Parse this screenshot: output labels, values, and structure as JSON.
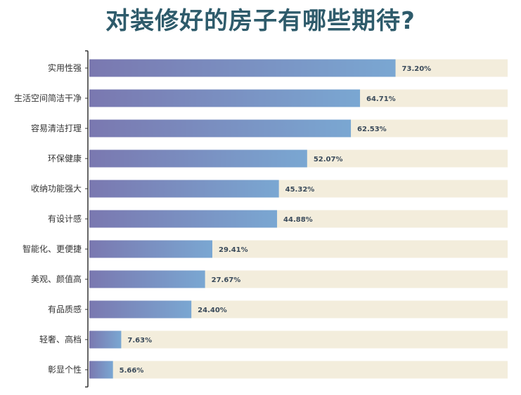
{
  "chart_data": {
    "type": "bar",
    "orientation": "horizontal",
    "title": "对装修好的房子有哪些期待?",
    "categories": [
      "实用性强",
      "生活空间简洁干净",
      "容易清洁打理",
      "环保健康",
      "收纳功能强大",
      "有设计感",
      "智能化、更便捷",
      "美观、颜值高",
      "有品质感",
      "轻奢、高档",
      "彰显个性"
    ],
    "values": [
      73.2,
      64.71,
      62.53,
      52.07,
      45.32,
      44.88,
      29.41,
      27.67,
      24.4,
      7.63,
      5.66
    ],
    "value_labels": [
      "73.20%",
      "64.71%",
      "62.53%",
      "52.07%",
      "45.32%",
      "44.88%",
      "29.41%",
      "27.67%",
      "24.40%",
      "7.63%",
      "5.66%"
    ],
    "unit": "%",
    "xlim": [
      0,
      100
    ],
    "grid": false,
    "legend": "none",
    "colors": {
      "bar_start": "#7a78b0",
      "bar_end": "#7aa7d2",
      "track": "#f3eddc",
      "axis": "#333333",
      "title": "#2e5b6b"
    }
  }
}
